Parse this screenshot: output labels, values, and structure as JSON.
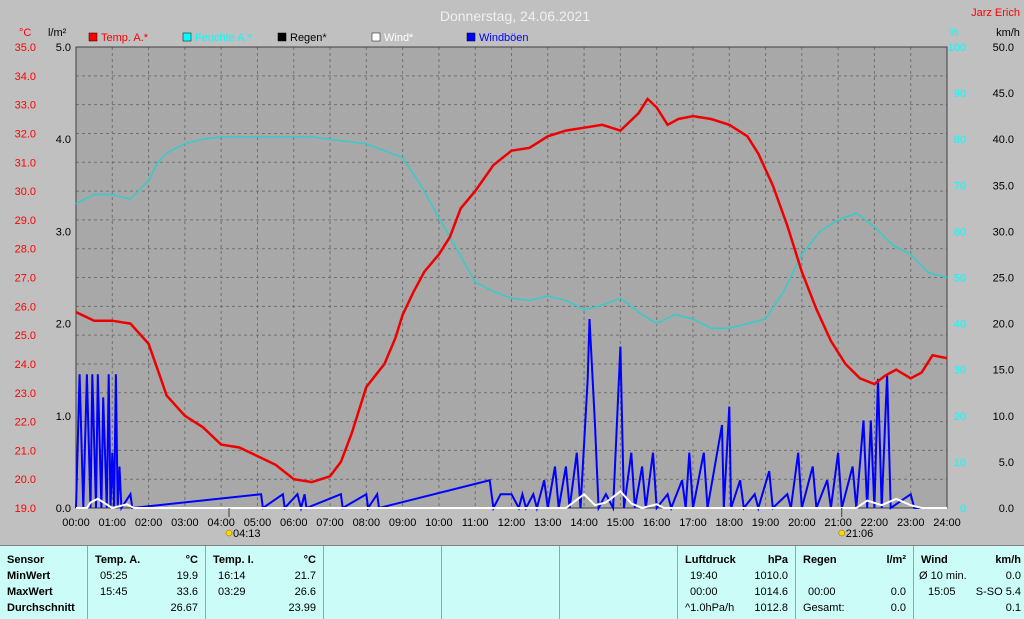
{
  "chart_data": {
    "type": "line",
    "title": "Donnerstag, 24.06.2021",
    "station": "Jarz Erich",
    "units": {
      "temp": "°C",
      "rain": "l/m²",
      "humidity": "%",
      "wind": "km/h"
    },
    "legend": [
      {
        "label": "Temp. A.*",
        "color": "#ff0000"
      },
      {
        "label": "Feuchte A.*",
        "color": "#00ffff"
      },
      {
        "label": "Regen*",
        "color": "#000000"
      },
      {
        "label": "Wind*",
        "color": "#ffffff"
      },
      {
        "label": "Windböen",
        "color": "#0000ff"
      }
    ],
    "x_ticks": [
      "00:00",
      "01:00",
      "02:00",
      "03:00",
      "04:00",
      "05:00",
      "06:00",
      "07:00",
      "08:00",
      "09:00",
      "10:00",
      "11:00",
      "12:00",
      "13:00",
      "14:00",
      "15:00",
      "16:00",
      "17:00",
      "18:00",
      "19:00",
      "20:00",
      "21:00",
      "22:00",
      "23:00",
      "24:00"
    ],
    "temp_ticks": [
      "19.0",
      "20.0",
      "21.0",
      "22.0",
      "23.0",
      "24.0",
      "25.0",
      "26.0",
      "27.0",
      "28.0",
      "29.0",
      "30.0",
      "31.0",
      "32.0",
      "33.0",
      "34.0",
      "35.0"
    ],
    "rain_ticks": [
      "0.0",
      "1.0",
      "2.0",
      "3.0",
      "4.0",
      "5.0"
    ],
    "hum_ticks": [
      "0",
      "10",
      "20",
      "30",
      "40",
      "50",
      "60",
      "70",
      "80",
      "90",
      "100"
    ],
    "wind_ticks": [
      "0.0",
      "5.0",
      "10.0",
      "15.0",
      "20.0",
      "25.0",
      "30.0",
      "35.0",
      "40.0",
      "45.0",
      "50.0"
    ],
    "sunrise": "04:13",
    "sunset": "21:06",
    "temp_range": [
      19,
      35
    ],
    "hum_range": [
      0,
      100
    ],
    "wind_range": [
      0,
      50
    ],
    "rain_range": [
      0,
      5
    ],
    "temperature": [
      [
        0,
        25.8
      ],
      [
        0.5,
        25.5
      ],
      [
        1,
        25.5
      ],
      [
        1.5,
        25.4
      ],
      [
        2,
        24.7
      ],
      [
        2.25,
        23.8
      ],
      [
        2.5,
        22.9
      ],
      [
        3,
        22.2
      ],
      [
        3.5,
        21.8
      ],
      [
        3.75,
        21.5
      ],
      [
        4,
        21.2
      ],
      [
        4.5,
        21.1
      ],
      [
        5,
        20.8
      ],
      [
        5.5,
        20.5
      ],
      [
        6,
        20.0
      ],
      [
        6.5,
        19.9
      ],
      [
        7,
        20.1
      ],
      [
        7.3,
        20.6
      ],
      [
        7.6,
        21.6
      ],
      [
        8,
        23.2
      ],
      [
        8.5,
        24.0
      ],
      [
        8.8,
        24.9
      ],
      [
        9,
        25.7
      ],
      [
        9.3,
        26.5
      ],
      [
        9.6,
        27.2
      ],
      [
        10,
        27.8
      ],
      [
        10.3,
        28.4
      ],
      [
        10.6,
        29.4
      ],
      [
        11,
        30.0
      ],
      [
        11.5,
        30.9
      ],
      [
        12,
        31.4
      ],
      [
        12.5,
        31.5
      ],
      [
        13,
        31.9
      ],
      [
        13.5,
        32.1
      ],
      [
        14,
        32.2
      ],
      [
        14.5,
        32.3
      ],
      [
        15,
        32.1
      ],
      [
        15.5,
        32.7
      ],
      [
        15.75,
        33.2
      ],
      [
        16,
        32.9
      ],
      [
        16.3,
        32.3
      ],
      [
        16.6,
        32.5
      ],
      [
        17,
        32.6
      ],
      [
        17.5,
        32.5
      ],
      [
        18,
        32.3
      ],
      [
        18.5,
        31.9
      ],
      [
        18.8,
        31.3
      ],
      [
        19.2,
        30.2
      ],
      [
        19.6,
        28.8
      ],
      [
        20,
        27.2
      ],
      [
        20.4,
        25.9
      ],
      [
        20.8,
        24.8
      ],
      [
        21.2,
        24.0
      ],
      [
        21.6,
        23.5
      ],
      [
        22,
        23.3
      ],
      [
        22.3,
        23.6
      ],
      [
        22.6,
        23.8
      ],
      [
        23,
        23.5
      ],
      [
        23.3,
        23.7
      ],
      [
        23.6,
        24.3
      ],
      [
        24,
        24.2
      ]
    ],
    "humidity": [
      [
        0,
        66
      ],
      [
        0.5,
        68
      ],
      [
        1,
        68
      ],
      [
        1.5,
        67
      ],
      [
        2,
        71
      ],
      [
        2.25,
        75
      ],
      [
        2.5,
        77
      ],
      [
        3,
        79
      ],
      [
        3.5,
        80
      ],
      [
        4,
        80.5
      ],
      [
        5,
        80.5
      ],
      [
        6,
        80.5
      ],
      [
        6.5,
        80.5
      ],
      [
        7,
        80
      ],
      [
        8,
        79
      ],
      [
        9,
        76
      ],
      [
        9.5,
        70
      ],
      [
        10,
        63
      ],
      [
        10.5,
        56
      ],
      [
        11,
        49
      ],
      [
        11.5,
        47
      ],
      [
        12,
        45.5
      ],
      [
        12.5,
        45
      ],
      [
        13,
        46
      ],
      [
        13.5,
        45
      ],
      [
        14,
        43
      ],
      [
        14.5,
        44
      ],
      [
        15,
        45.5
      ],
      [
        15.5,
        42.5
      ],
      [
        16,
        40
      ],
      [
        16.5,
        42
      ],
      [
        17,
        41
      ],
      [
        17.5,
        39
      ],
      [
        18,
        39
      ],
      [
        18.5,
        40
      ],
      [
        19,
        41
      ],
      [
        19.5,
        47
      ],
      [
        20,
        55
      ],
      [
        20.5,
        60
      ],
      [
        21,
        62.5
      ],
      [
        21.5,
        64
      ],
      [
        22,
        61
      ],
      [
        22.5,
        57
      ],
      [
        23,
        55
      ],
      [
        23.5,
        51
      ],
      [
        24,
        50
      ]
    ],
    "wind": [
      [
        0,
        0
      ],
      [
        0.3,
        0
      ],
      [
        0.4,
        0.6
      ],
      [
        0.6,
        1
      ],
      [
        0.8,
        0.5
      ],
      [
        1,
        0
      ],
      [
        1.4,
        0.4
      ],
      [
        1.6,
        0
      ],
      [
        13.5,
        0
      ],
      [
        14,
        1.5
      ],
      [
        14.3,
        0.3
      ],
      [
        14.6,
        0.6
      ],
      [
        15,
        1.8
      ],
      [
        15.3,
        0.5
      ],
      [
        15.6,
        0
      ],
      [
        16,
        0.4
      ],
      [
        16.2,
        0
      ],
      [
        21.5,
        0
      ],
      [
        21.8,
        0.8
      ],
      [
        22.2,
        0.3
      ],
      [
        22.6,
        1
      ],
      [
        23,
        0.3
      ],
      [
        23.3,
        0
      ],
      [
        24,
        0
      ]
    ],
    "gusts": [
      [
        0,
        0
      ],
      [
        0.1,
        14.5
      ],
      [
        0.2,
        0
      ],
      [
        0.3,
        14.5
      ],
      [
        0.4,
        0
      ],
      [
        0.45,
        14.5
      ],
      [
        0.55,
        0
      ],
      [
        0.6,
        14.5
      ],
      [
        0.7,
        0
      ],
      [
        0.75,
        12
      ],
      [
        0.85,
        0
      ],
      [
        0.9,
        14.5
      ],
      [
        0.95,
        0
      ],
      [
        1,
        6
      ],
      [
        1.05,
        0
      ],
      [
        1.1,
        14.5
      ],
      [
        1.15,
        0
      ],
      [
        1.2,
        4.5
      ],
      [
        1.25,
        0
      ],
      [
        1.5,
        1.5
      ],
      [
        1.55,
        0
      ],
      [
        5.1,
        1.5
      ],
      [
        5.15,
        0
      ],
      [
        5.7,
        1.5
      ],
      [
        5.75,
        0
      ],
      [
        6.1,
        1.5
      ],
      [
        6.2,
        0
      ],
      [
        6.3,
        1.5
      ],
      [
        6.35,
        0
      ],
      [
        7.3,
        1.5
      ],
      [
        7.35,
        0
      ],
      [
        8,
        1.5
      ],
      [
        8.05,
        0
      ],
      [
        8.3,
        1.5
      ],
      [
        8.35,
        0
      ],
      [
        11.4,
        3
      ],
      [
        11.5,
        0
      ],
      [
        11.7,
        1.5
      ],
      [
        12,
        1.5
      ],
      [
        12.2,
        0
      ],
      [
        12.3,
        1.5
      ],
      [
        12.4,
        0
      ],
      [
        12.6,
        1.5
      ],
      [
        12.7,
        0
      ],
      [
        12.9,
        3
      ],
      [
        13,
        0
      ],
      [
        13.2,
        4.5
      ],
      [
        13.3,
        0
      ],
      [
        13.5,
        4.5
      ],
      [
        13.6,
        0
      ],
      [
        13.8,
        6
      ],
      [
        13.9,
        0
      ],
      [
        14.1,
        14
      ],
      [
        14.15,
        20.5
      ],
      [
        14.3,
        9
      ],
      [
        14.4,
        0
      ],
      [
        14.6,
        1.5
      ],
      [
        14.8,
        0
      ],
      [
        15,
        17.5
      ],
      [
        15.1,
        0
      ],
      [
        15.3,
        6
      ],
      [
        15.4,
        0
      ],
      [
        15.6,
        4.5
      ],
      [
        15.7,
        0
      ],
      [
        15.9,
        6
      ],
      [
        16,
        0
      ],
      [
        16.3,
        1.5
      ],
      [
        16.4,
        0
      ],
      [
        16.7,
        3
      ],
      [
        16.8,
        0
      ],
      [
        16.9,
        6
      ],
      [
        17,
        0
      ],
      [
        17.3,
        6
      ],
      [
        17.4,
        0
      ],
      [
        17.8,
        9
      ],
      [
        17.85,
        0
      ],
      [
        18,
        11
      ],
      [
        18.05,
        0
      ],
      [
        18.3,
        3
      ],
      [
        18.4,
        0
      ],
      [
        18.7,
        1.5
      ],
      [
        18.8,
        0
      ],
      [
        19.1,
        4
      ],
      [
        19.2,
        0
      ],
      [
        19.6,
        1.5
      ],
      [
        19.7,
        0
      ],
      [
        19.9,
        6
      ],
      [
        20,
        0
      ],
      [
        20.3,
        4.5
      ],
      [
        20.4,
        0
      ],
      [
        20.7,
        3
      ],
      [
        20.8,
        0
      ],
      [
        21,
        6
      ],
      [
        21.1,
        0
      ],
      [
        21.4,
        4.5
      ],
      [
        21.5,
        0
      ],
      [
        21.7,
        9.5
      ],
      [
        21.8,
        0
      ],
      [
        21.9,
        9.5
      ],
      [
        22,
        0
      ],
      [
        22.1,
        14
      ],
      [
        22.2,
        0
      ],
      [
        22.35,
        14.5
      ],
      [
        22.45,
        0
      ],
      [
        23,
        1.5
      ],
      [
        23.1,
        0
      ],
      [
        24,
        0
      ]
    ],
    "rain": []
  },
  "table": {
    "sensor": {
      "header": "Sensor",
      "rows": [
        "MinWert",
        "MaxWert",
        "Durchschnitt"
      ]
    },
    "temp_a": {
      "header": "Temp. A.",
      "unit": "°C",
      "times": [
        "05:25",
        "15:45",
        ""
      ],
      "values": [
        "19.9",
        "33.6",
        "26.67"
      ]
    },
    "temp_i": {
      "header": "Temp. I.",
      "unit": "°C",
      "times": [
        "16:14",
        "03:29",
        ""
      ],
      "values": [
        "21.7",
        "26.6",
        "23.99"
      ]
    },
    "pressure": {
      "header": "Luftdruck",
      "unit": "hPa",
      "times": [
        "19:40",
        "00:00",
        "^1.0hPa/h"
      ],
      "values": [
        "1010.0",
        "1014.6",
        "1012.8"
      ]
    },
    "rain": {
      "header": "Regen",
      "unit": "l/m²",
      "times": [
        "",
        "00:00",
        "Gesamt:"
      ],
      "values": [
        "",
        "0.0",
        "0.0"
      ]
    },
    "wind": {
      "header": "Wind",
      "unit": "km/h",
      "times": [
        "Ø 10 min.",
        "15:05",
        ""
      ],
      "values": [
        "0.0",
        "S-SO 5.4",
        "0.1"
      ]
    }
  }
}
